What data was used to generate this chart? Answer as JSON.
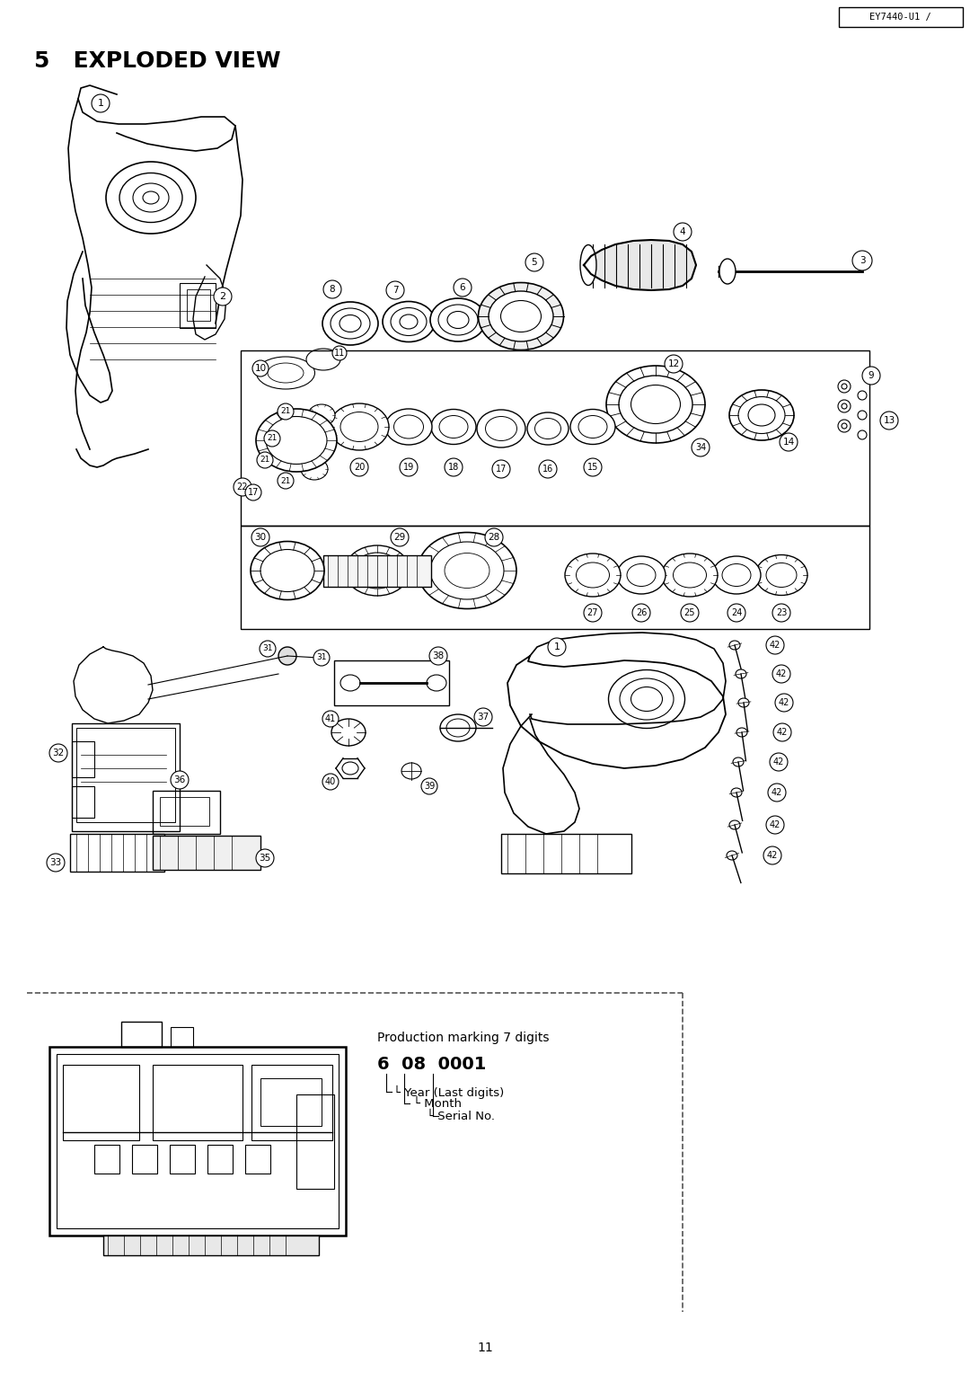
{
  "title": "5   EXPLODED VIEW",
  "header_label": "EY7440-U1 /",
  "page_number": "11",
  "bg_color": "#ffffff",
  "text_color": "#000000",
  "title_fontsize": 18,
  "header_fontsize": 7.5,
  "page_num_fontsize": 10,
  "figsize": [
    10.8,
    15.28
  ],
  "dpi": 100,
  "prod_mark_text": "Production marking 7 digits",
  "prod_mark_digits": "6  08  0001",
  "prod_serial": "└ Serial No.",
  "prod_month": "└ Month",
  "prod_year": "└ Year (Last digits)"
}
